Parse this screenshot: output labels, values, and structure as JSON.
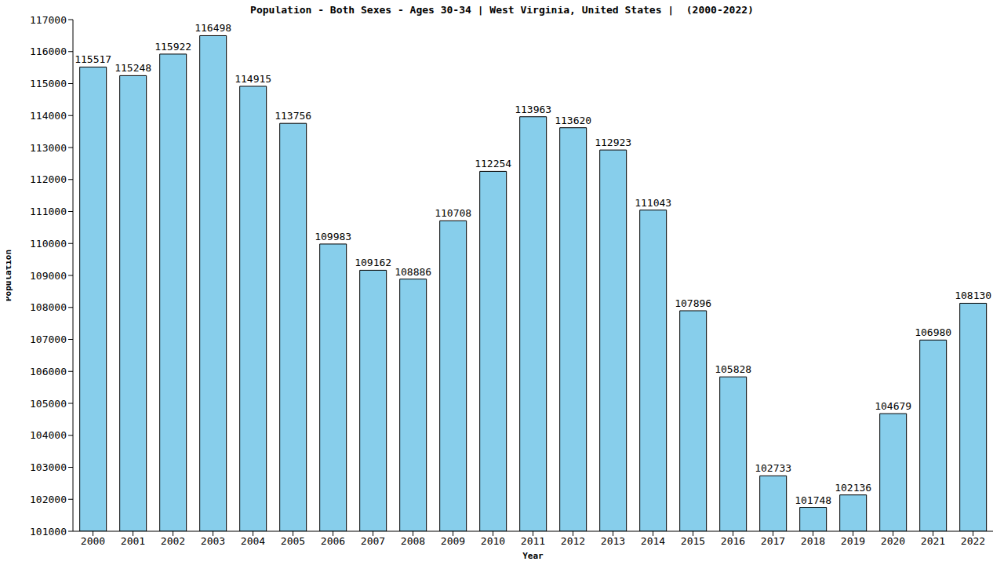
{
  "chart_data": {
    "type": "bar",
    "title": "Population - Both Sexes - Ages 30-34 | West Virginia, United States |  (2000-2022)",
    "x_label": "Year",
    "y_label": "Population",
    "categories": [
      "2000",
      "2001",
      "2002",
      "2003",
      "2004",
      "2005",
      "2006",
      "2007",
      "2008",
      "2009",
      "2010",
      "2011",
      "2012",
      "2013",
      "2014",
      "2015",
      "2016",
      "2017",
      "2018",
      "2019",
      "2020",
      "2021",
      "2022"
    ],
    "values": [
      115517,
      115248,
      115922,
      116498,
      114915,
      113756,
      109983,
      109162,
      108886,
      110708,
      112254,
      113963,
      113620,
      112923,
      111043,
      107896,
      105828,
      102733,
      101748,
      102136,
      104679,
      106980,
      108130
    ],
    "color": "#87ceeb",
    "ylim": [
      101000,
      117000
    ],
    "yticks": [
      101000,
      102000,
      103000,
      104000,
      105000,
      106000,
      107000,
      108000,
      109000,
      110000,
      111000,
      112000,
      113000,
      114000,
      115000,
      116000,
      117000
    ],
    "grid": false,
    "data_labels": true
  }
}
